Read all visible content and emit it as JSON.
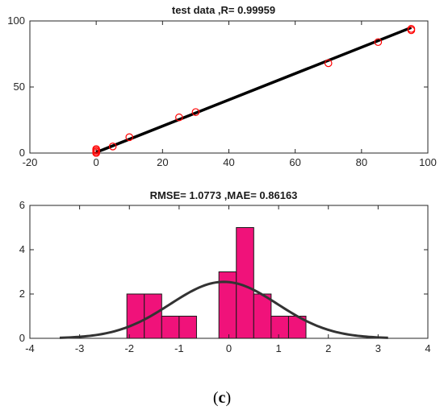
{
  "chart_data": [
    {
      "type": "scatter",
      "title": "test data ,R= 0.99959",
      "xlim": [
        -20,
        100
      ],
      "ylim": [
        0,
        100
      ],
      "xticks": [
        "-20",
        "0",
        "20",
        "40",
        "60",
        "80",
        "100"
      ],
      "yticks": [
        "0",
        "50",
        "100"
      ],
      "grid": false,
      "points": {
        "x": [
          0,
          0,
          0,
          0,
          5,
          10,
          25,
          30,
          70,
          85,
          95,
          95
        ],
        "y": [
          0,
          1,
          2,
          3,
          5,
          12,
          27,
          31,
          68,
          84,
          93,
          94
        ],
        "color": "#ff0000",
        "marker": "open-circle"
      },
      "fit_line": {
        "x": [
          0,
          95
        ],
        "y": [
          0.5,
          95
        ],
        "color": "#000000"
      }
    },
    {
      "type": "bar",
      "subtype": "histogram",
      "title": "RMSE= 1.0773  ,MAE= 0.86163",
      "xlim": [
        -4,
        4
      ],
      "ylim": [
        0,
        6
      ],
      "xticks": [
        "-4",
        "-3",
        "-2",
        "-1",
        "0",
        "1",
        "2",
        "3",
        "4"
      ],
      "yticks": [
        "0",
        "2",
        "4",
        "6"
      ],
      "grid": false,
      "bins": [
        {
          "start": -2.05,
          "end": -1.7,
          "count": 2
        },
        {
          "start": -1.7,
          "end": -1.35,
          "count": 2
        },
        {
          "start": -1.35,
          "end": -1.0,
          "count": 1
        },
        {
          "start": -1.0,
          "end": -0.65,
          "count": 1
        },
        {
          "start": -0.2,
          "end": 0.15,
          "count": 3
        },
        {
          "start": 0.15,
          "end": 0.5,
          "count": 5
        },
        {
          "start": 0.5,
          "end": 0.85,
          "count": 2
        },
        {
          "start": 0.85,
          "end": 1.2,
          "count": 1
        },
        {
          "start": 1.2,
          "end": 1.55,
          "count": 1
        }
      ],
      "bar_color": "#f0127a",
      "normal_fit": {
        "mean": -0.1,
        "std": 1.0773,
        "peak": 2.55,
        "x_range": [
          -3.4,
          3.2
        ],
        "color": "#333333"
      }
    }
  ],
  "caption": {
    "open": "(",
    "letter": "c",
    "close": ")"
  }
}
